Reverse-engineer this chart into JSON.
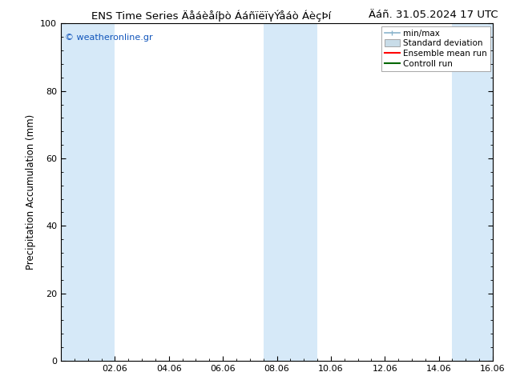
{
  "title_left": "ENS Time Series Äåáèåíþò ÁáñïëïγÝåáò ÁèçÞí",
  "title_right": "Äáñ. 31.05.2024 17 UTC",
  "ylabel": "Precipitation Accumulation (mm)",
  "watermark": "© weatheronline.gr",
  "ylim": [
    0,
    100
  ],
  "yticks": [
    0,
    20,
    40,
    60,
    80,
    100
  ],
  "xlim": [
    0,
    16
  ],
  "xtick_positions": [
    2,
    4,
    6,
    8,
    10,
    12,
    14,
    16
  ],
  "xtick_labels": [
    "02.06",
    "04.06",
    "06.06",
    "08.06",
    "10.06",
    "12.06",
    "14.06",
    "16.06"
  ],
  "shaded_bands": [
    {
      "x_start": 0.0,
      "x_end": 2.0
    },
    {
      "x_start": 7.5,
      "x_end": 9.5
    },
    {
      "x_start": 14.5,
      "x_end": 16.0
    }
  ],
  "shaded_color": "#d6e9f8",
  "bg_color": "#ffffff",
  "legend_labels": [
    "min/max",
    "Standard deviation",
    "Ensemble mean run",
    "Controll run"
  ],
  "legend_colors": [
    "#8ab4cc",
    "#c8dce8",
    "#ff0000",
    "#006600"
  ],
  "watermark_color": "#1155bb",
  "title_fontsize": 9.5,
  "ylabel_fontsize": 8.5,
  "tick_fontsize": 8,
  "legend_fontsize": 7.5
}
